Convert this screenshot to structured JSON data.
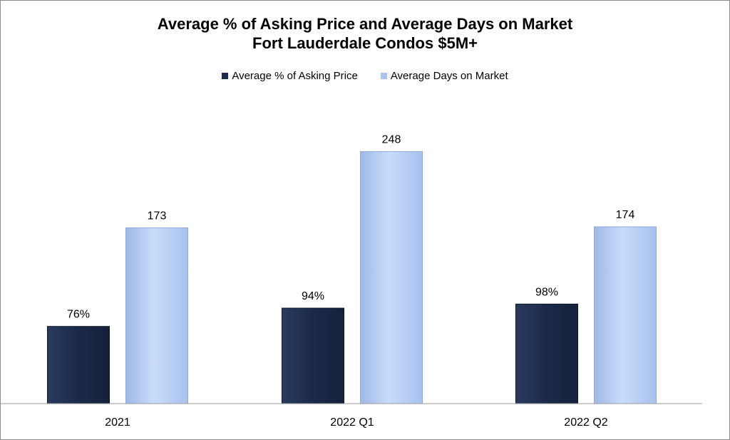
{
  "chart_data": {
    "type": "bar",
    "title": "Average % of Asking Price and Average Days on Market",
    "subtitle": "Fort Lauderdale Condos $5M+",
    "categories": [
      "2021",
      "2022 Q1",
      "2022 Q2"
    ],
    "series": [
      {
        "name": "Average % of Asking Price",
        "values": [
          76,
          94,
          98
        ],
        "labels": [
          "76%",
          "94%",
          "98%"
        ],
        "color": "#1b2a49"
      },
      {
        "name": "Average Days on Market",
        "values": [
          173,
          248,
          174
        ],
        "labels": [
          "173",
          "248",
          "174"
        ],
        "color": "#b7cff5"
      }
    ],
    "ylim": [
      0,
      280
    ],
    "grid": false,
    "legend_position": "top-center"
  }
}
